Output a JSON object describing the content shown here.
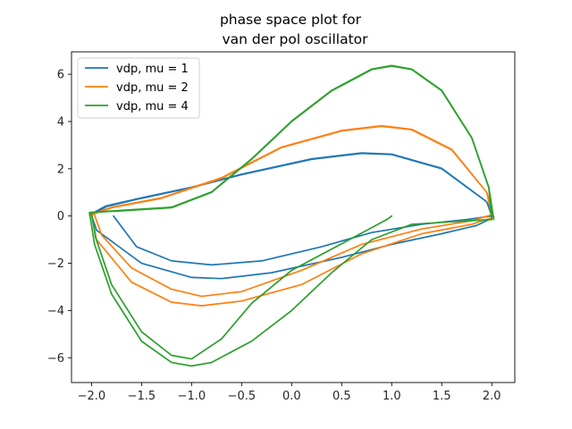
{
  "chart_data": {
    "type": "line",
    "title_lines": [
      "phase space plot for",
      "van der pol oscillator"
    ],
    "xlabel": "",
    "ylabel": "",
    "xlim": [
      -2.2,
      2.23
    ],
    "ylim": [
      -7.05,
      6.95
    ],
    "xticks": [
      -2.0,
      -1.5,
      -1.0,
      -0.5,
      0.0,
      0.5,
      1.0,
      1.5,
      2.0
    ],
    "xtick_labels": [
      "−2.0",
      "−1.5",
      "−1.0",
      "−0.5",
      "0.0",
      "0.5",
      "1.0",
      "1.5",
      "2.0"
    ],
    "yticks": [
      -6,
      -4,
      -2,
      0,
      2,
      4,
      6
    ],
    "ytick_labels": [
      "−6",
      "−4",
      "−2",
      "0",
      "2",
      "4",
      "6"
    ],
    "grid": false,
    "legend_position": "top-left",
    "series": [
      {
        "name": "vdp, mu = 1",
        "mu": 1,
        "color": "#1f77b4",
        "points": [
          [
            -1.78,
            0.0
          ],
          [
            -1.55,
            -1.3
          ],
          [
            -1.2,
            -1.9
          ],
          [
            -0.8,
            -2.07
          ],
          [
            -0.3,
            -1.9
          ],
          [
            0.3,
            -1.3
          ],
          [
            0.8,
            -0.7
          ],
          [
            1.3,
            -0.35
          ],
          [
            1.75,
            -0.15
          ],
          [
            2.0,
            0.0
          ],
          [
            1.95,
            0.6
          ],
          [
            1.5,
            2.0
          ],
          [
            1.0,
            2.6
          ],
          [
            0.7,
            2.65
          ],
          [
            0.2,
            2.4
          ],
          [
            -0.5,
            1.75
          ],
          [
            -1.0,
            1.2
          ],
          [
            -1.5,
            0.75
          ],
          [
            -1.85,
            0.4
          ],
          [
            -2.0,
            0.05
          ],
          [
            -1.95,
            -0.6
          ],
          [
            -1.5,
            -2.0
          ],
          [
            -1.0,
            -2.6
          ],
          [
            -0.7,
            -2.65
          ],
          [
            -0.2,
            -2.4
          ],
          [
            0.5,
            -1.75
          ],
          [
            1.0,
            -1.2
          ],
          [
            1.5,
            -0.75
          ],
          [
            1.85,
            -0.4
          ],
          [
            2.02,
            -0.05
          ],
          [
            1.95,
            0.6
          ],
          [
            1.5,
            2.02
          ],
          [
            1.0,
            2.62
          ],
          [
            0.7,
            2.67
          ],
          [
            0.2,
            2.42
          ],
          [
            -0.5,
            1.77
          ],
          [
            -1.0,
            1.22
          ],
          [
            -1.5,
            0.77
          ],
          [
            -1.86,
            0.42
          ],
          [
            -2.02,
            0.05
          ]
        ]
      },
      {
        "name": "vdp, mu = 2",
        "mu": 2,
        "color": "#ff7f0e",
        "points": [
          [
            -1.97,
            0.05
          ],
          [
            -1.9,
            -0.8
          ],
          [
            -1.6,
            -2.2
          ],
          [
            -1.2,
            -3.1
          ],
          [
            -0.9,
            -3.4
          ],
          [
            -0.5,
            -3.2
          ],
          [
            0.1,
            -2.3
          ],
          [
            0.7,
            -1.2
          ],
          [
            1.3,
            -0.55
          ],
          [
            1.8,
            -0.2
          ],
          [
            2.0,
            0.05
          ],
          [
            1.95,
            1.0
          ],
          [
            1.6,
            2.8
          ],
          [
            1.2,
            3.65
          ],
          [
            0.9,
            3.8
          ],
          [
            0.5,
            3.6
          ],
          [
            -0.1,
            2.9
          ],
          [
            -0.7,
            1.6
          ],
          [
            -1.3,
            0.75
          ],
          [
            -1.8,
            0.35
          ],
          [
            -2.0,
            0.05
          ],
          [
            -1.95,
            -1.0
          ],
          [
            -1.6,
            -2.8
          ],
          [
            -1.2,
            -3.65
          ],
          [
            -0.9,
            -3.8
          ],
          [
            -0.5,
            -3.6
          ],
          [
            0.1,
            -2.9
          ],
          [
            0.7,
            -1.6
          ],
          [
            1.3,
            -0.75
          ],
          [
            1.8,
            -0.35
          ],
          [
            2.02,
            -0.05
          ],
          [
            1.95,
            1.0
          ],
          [
            1.6,
            2.82
          ],
          [
            1.2,
            3.67
          ],
          [
            0.9,
            3.82
          ],
          [
            0.5,
            3.62
          ],
          [
            -0.1,
            2.92
          ],
          [
            -0.7,
            1.62
          ],
          [
            -1.3,
            0.77
          ],
          [
            -1.8,
            0.37
          ],
          [
            -2.02,
            0.05
          ]
        ]
      },
      {
        "name": "vdp, mu = 4",
        "mu": 4,
        "color": "#2ca02c",
        "points": [
          [
            1.0,
            0.0
          ],
          [
            0.95,
            -0.15
          ],
          [
            0.6,
            -0.95
          ],
          [
            0.0,
            -2.3
          ],
          [
            -0.4,
            -3.7
          ],
          [
            -0.7,
            -5.2
          ],
          [
            -1.0,
            -6.05
          ],
          [
            -1.2,
            -5.9
          ],
          [
            -1.5,
            -4.9
          ],
          [
            -1.8,
            -2.9
          ],
          [
            -1.96,
            -0.9
          ],
          [
            -2.0,
            0.15
          ],
          [
            -1.7,
            0.22
          ],
          [
            -1.2,
            0.35
          ],
          [
            -0.8,
            1.0
          ],
          [
            -0.4,
            2.4
          ],
          [
            0.0,
            4.0
          ],
          [
            0.4,
            5.3
          ],
          [
            0.8,
            6.2
          ],
          [
            1.0,
            6.35
          ],
          [
            1.2,
            6.2
          ],
          [
            1.5,
            5.3
          ],
          [
            1.8,
            3.3
          ],
          [
            1.97,
            1.2
          ],
          [
            2.0,
            -0.15
          ],
          [
            1.7,
            -0.22
          ],
          [
            1.2,
            -0.35
          ],
          [
            0.8,
            -1.0
          ],
          [
            0.4,
            -2.4
          ],
          [
            0.0,
            -4.0
          ],
          [
            -0.4,
            -5.3
          ],
          [
            -0.8,
            -6.2
          ],
          [
            -1.0,
            -6.35
          ],
          [
            -1.2,
            -6.2
          ],
          [
            -1.5,
            -5.3
          ],
          [
            -1.8,
            -3.3
          ],
          [
            -1.97,
            -1.2
          ],
          [
            -2.02,
            0.15
          ],
          [
            -1.7,
            0.24
          ],
          [
            -1.2,
            0.37
          ],
          [
            -0.8,
            1.02
          ],
          [
            -0.4,
            2.42
          ],
          [
            0.0,
            4.02
          ],
          [
            0.4,
            5.32
          ],
          [
            0.8,
            6.22
          ],
          [
            1.0,
            6.37
          ],
          [
            1.2,
            6.22
          ],
          [
            1.5,
            5.32
          ],
          [
            1.8,
            3.32
          ],
          [
            1.97,
            1.22
          ],
          [
            2.02,
            -0.15
          ]
        ]
      }
    ]
  }
}
